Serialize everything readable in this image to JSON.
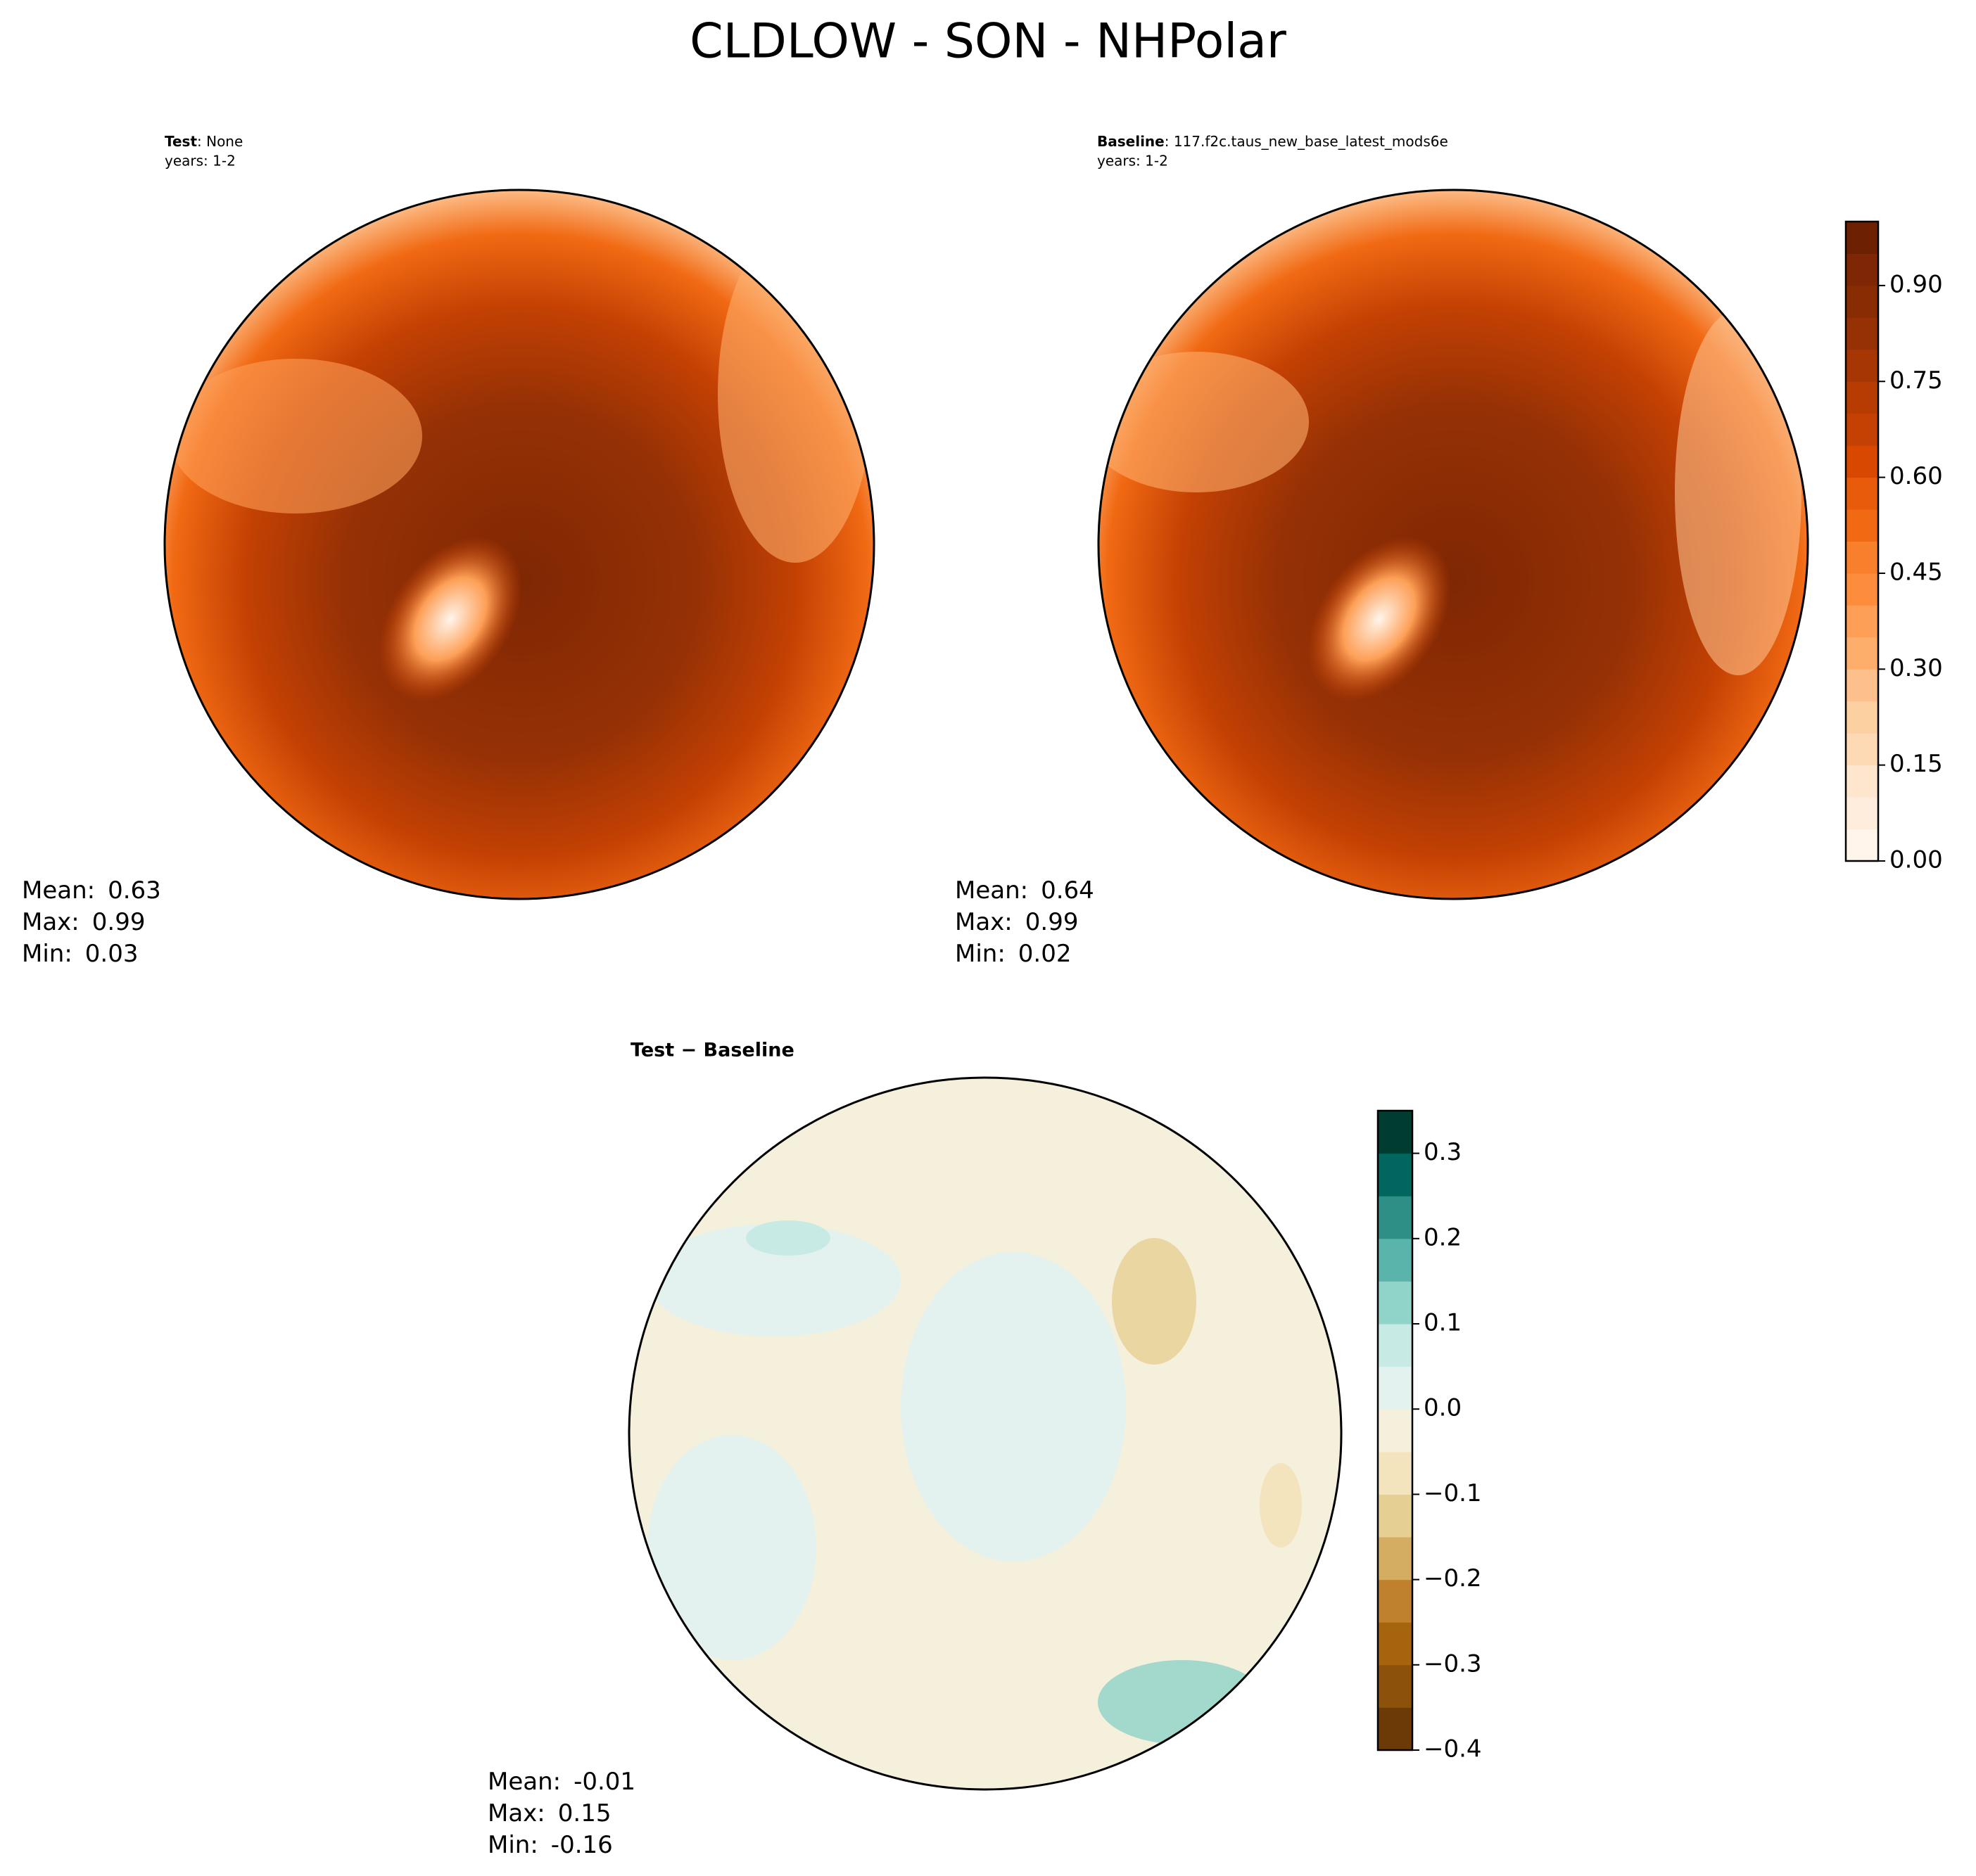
{
  "title": "CLDLOW - SON - NHPolar",
  "chart_data": [
    {
      "type": "map",
      "header_bold": "Test",
      "header_rest": ": None",
      "years": "years: 1-2",
      "stats": [
        {
          "label": "Mean:",
          "value": 0.63
        },
        {
          "label": "Max:",
          "value": 0.99
        },
        {
          "label": "Min:",
          "value": 0.03
        }
      ]
    },
    {
      "type": "map",
      "header_bold": "Baseline",
      "header_rest": ": 117.f2c.taus_new_base_latest_mods6e",
      "years": "years: 1-2",
      "stats": [
        {
          "label": "Mean:",
          "value": 0.64
        },
        {
          "label": "Max:",
          "value": 0.99
        },
        {
          "label": "Min:",
          "value": 0.02
        }
      ],
      "colorbar": {
        "ylim": [
          0,
          1
        ],
        "yticks": [
          {
            "value": 0,
            "label": "0.00"
          },
          {
            "value": 0.15,
            "label": "0.15"
          },
          {
            "value": 0.3,
            "label": "0.30"
          },
          {
            "value": 0.45,
            "label": "0.45"
          },
          {
            "value": 0.6,
            "label": "0.60"
          },
          {
            "value": 0.75,
            "label": "0.75"
          },
          {
            "value": 0.9,
            "label": "0.90"
          }
        ],
        "colors": [
          "#fff5eb",
          "#feeddc",
          "#fee6ce",
          "#fdd9b4",
          "#fdd0a2",
          "#fdc08c",
          "#fdae6b",
          "#fd9f56",
          "#fd8d3c",
          "#f87f2c",
          "#f16913",
          "#e75b0b",
          "#d94801",
          "#c44103",
          "#b63c02",
          "#a63603",
          "#963105",
          "#882c04",
          "#7f2704",
          "#6e2003"
        ]
      }
    },
    {
      "type": "map",
      "header_bold": "Test − Baseline",
      "stats": [
        {
          "label": "Mean:",
          "value": -0.01
        },
        {
          "label": "Max:",
          "value": 0.15
        },
        {
          "label": "Min:",
          "value": -0.16
        }
      ],
      "colorbar": {
        "ylim": [
          -0.4,
          0.35
        ],
        "yticks": [
          {
            "value": -0.4,
            "label": "−0.4"
          },
          {
            "value": -0.3,
            "label": "−0.3"
          },
          {
            "value": -0.2,
            "label": "−0.2"
          },
          {
            "value": -0.1,
            "label": "−0.1"
          },
          {
            "value": 0,
            "label": "0.0"
          },
          0.1,
          0.2,
          0.3
        ],
        "colors": [
          "#6b3a06",
          "#8c510a",
          "#a6640f",
          "#bf812d",
          "#d4ad62",
          "#e6cf92",
          "#f3e4be",
          "#f5f0dc",
          "#e4f2ef",
          "#c7eae5",
          "#8fd3c9",
          "#5ab4ac",
          "#2d8f86",
          "#01665e",
          "#003c30"
        ]
      }
    }
  ]
}
